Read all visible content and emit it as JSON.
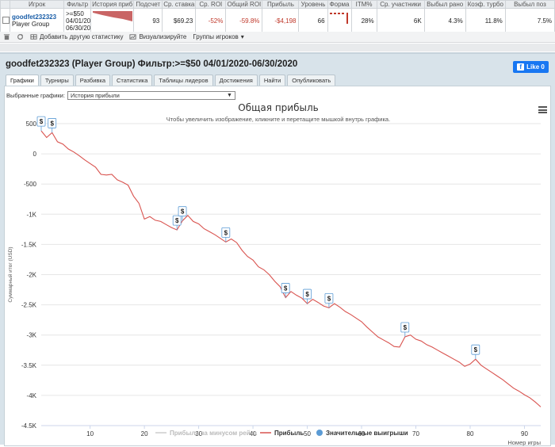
{
  "table": {
    "headers": [
      "",
      "Игрок",
      "Фильтр",
      "История приб",
      "Подсчет",
      "Ср. ставка",
      "Ср. ROI",
      "Общий ROI",
      "Прибыль",
      "Уровень",
      "Форма",
      "ITM%",
      "Ср. участники",
      "Выбыл рано",
      "Коэф. турбо",
      "Выбыл поз"
    ],
    "row": {
      "player_name": "goodfet232323",
      "player_group": "Player Group",
      "filter": [
        ">=$50",
        "04/01/20",
        "06/30/20"
      ],
      "count": "93",
      "avg_stake": "$69.23",
      "avg_roi": "-52%",
      "total_roi": "-59.8%",
      "profit": "-$4,198",
      "level": "66",
      "itm": "28%",
      "avg_entrants": "6K",
      "early_out": "4.3%",
      "turbo_ratio": "11.8%",
      "late_out": "7.5%"
    }
  },
  "toolbar": {
    "add_stat": "Добавить другую статистику",
    "visualize": "Визуализируйте",
    "player_groups": "Группы игроков"
  },
  "panel": {
    "title": "goodfet232323 (Player Group) Фильтр:>=$50 04/01/2020-06/30/2020",
    "like_label": "Like 0",
    "tabs": [
      "Графики",
      "Турниры",
      "Разбивка",
      "Статистика",
      "Таблицы лидеров",
      "Достижения",
      "Найти",
      "Опубликовать"
    ],
    "select_label": "Выбранные графики:",
    "select_value": "История прибыли"
  },
  "chart_data": {
    "type": "line",
    "title": "Общая прибыль",
    "subtitle": "Чтобы увеличить изображение, кликните и перетащите мышкой внутрь графика.",
    "xlabel": "Номер игры",
    "ylabel": "Суммарный итог (USD)",
    "xlim": [
      1,
      93
    ],
    "ylim": [
      -4500,
      500
    ],
    "xticks": [
      10,
      20,
      30,
      40,
      50,
      60,
      70,
      80,
      90
    ],
    "yticks": [
      500,
      0,
      -500,
      -1000,
      -1500,
      -2000,
      -2500,
      -3000,
      -3500,
      -4000,
      -4500
    ],
    "ytick_labels": [
      "500",
      "0",
      "-500",
      "-1K",
      "-1.5K",
      "-2K",
      "-2.5K",
      "-3K",
      "-3.5K",
      "-4K",
      "-4.5K"
    ],
    "series": [
      {
        "name": "Прибыль",
        "color": "#d9534f",
        "x": [
          1,
          2,
          3,
          4,
          5,
          6,
          7,
          8,
          9,
          10,
          11,
          12,
          13,
          14,
          15,
          16,
          17,
          18,
          19,
          20,
          21,
          22,
          23,
          24,
          25,
          26,
          27,
          28,
          29,
          30,
          31,
          32,
          33,
          34,
          35,
          36,
          37,
          38,
          39,
          40,
          41,
          42,
          43,
          44,
          45,
          46,
          47,
          48,
          49,
          50,
          51,
          52,
          53,
          54,
          55,
          56,
          57,
          58,
          59,
          60,
          61,
          62,
          63,
          64,
          65,
          66,
          67,
          68,
          69,
          70,
          71,
          72,
          73,
          74,
          75,
          76,
          77,
          78,
          79,
          80,
          81,
          82,
          83,
          84,
          85,
          86,
          87,
          88,
          89,
          90,
          91,
          92,
          93
        ],
        "y": [
          380,
          270,
          350,
          200,
          160,
          80,
          30,
          -30,
          -100,
          -160,
          -220,
          -340,
          -350,
          -340,
          -430,
          -470,
          -520,
          -700,
          -820,
          -1080,
          -1040,
          -1100,
          -1120,
          -1170,
          -1220,
          -1260,
          -1110,
          -1020,
          -1120,
          -1160,
          -1240,
          -1290,
          -1340,
          -1400,
          -1460,
          -1410,
          -1470,
          -1600,
          -1700,
          -1760,
          -1870,
          -1920,
          -2000,
          -2110,
          -2200,
          -2380,
          -2280,
          -2340,
          -2390,
          -2480,
          -2410,
          -2460,
          -2520,
          -2550,
          -2480,
          -2540,
          -2610,
          -2660,
          -2720,
          -2780,
          -2870,
          -2950,
          -3030,
          -3080,
          -3130,
          -3190,
          -3200,
          -3030,
          -3000,
          -3070,
          -3100,
          -3160,
          -3200,
          -3250,
          -3300,
          -3350,
          -3400,
          -3450,
          -3520,
          -3480,
          -3400,
          -3500,
          -3560,
          -3620,
          -3680,
          -3740,
          -3810,
          -3880,
          -3930,
          -3990,
          -4040,
          -4110,
          -4190
        ]
      },
      {
        "name": "Прибыль за минусом рейка",
        "color": "#cccccc",
        "x": [],
        "y": []
      }
    ],
    "markers": {
      "name": "Значительные выигрыши",
      "color": "#5b9bd5",
      "symbol": "$",
      "x": [
        1,
        3,
        26,
        27,
        35,
        46,
        50,
        54,
        68,
        81
      ],
      "y": [
        380,
        350,
        -1260,
        -1110,
        -1460,
        -2380,
        -2480,
        -2550,
        -3030,
        -3400
      ]
    },
    "legend": [
      "Прибыль за минусом рейка",
      "Прибыль",
      "Значительные выигрыши"
    ],
    "legend_position": "bottom"
  }
}
